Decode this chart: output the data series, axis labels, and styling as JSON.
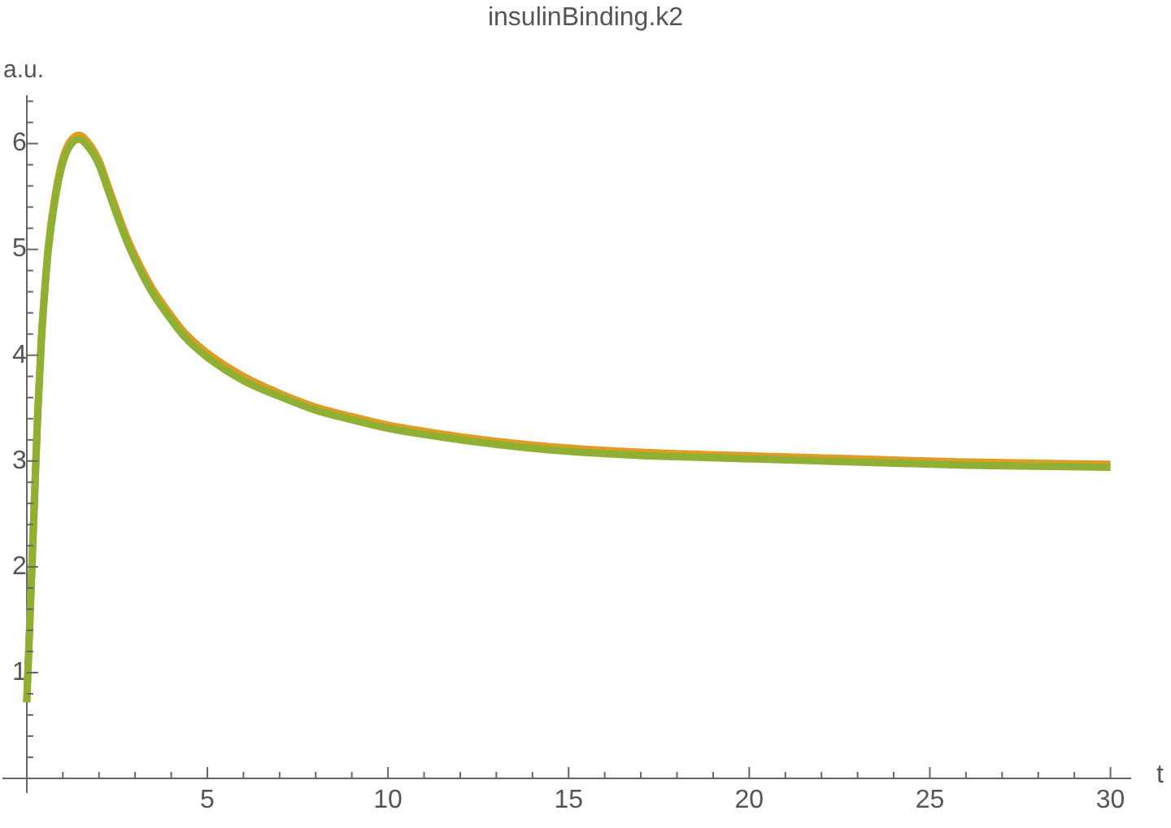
{
  "chart_data": {
    "type": "line",
    "title": "insulinBinding.k2",
    "xlabel": "t",
    "ylabel": "a.u.",
    "x": [
      0,
      0.1,
      0.2,
      0.3,
      0.4,
      0.5,
      0.6,
      0.8,
      1.0,
      1.2,
      1.45,
      1.7,
      2.0,
      2.26,
      2.5,
      2.79,
      3.1,
      3.46,
      3.9,
      4.35,
      5,
      6,
      7,
      8,
      9,
      10,
      12,
      14,
      16,
      18,
      20,
      22,
      24,
      26,
      28,
      30
    ],
    "series": [
      {
        "color": "#e19c24",
        "values": [
          0.72,
          1.62,
          2.53,
          3.43,
          4.14,
          4.64,
          5.04,
          5.54,
          5.86,
          6.02,
          6.08,
          6.01,
          5.84,
          5.59,
          5.36,
          5.1,
          4.87,
          4.64,
          4.42,
          4.22,
          4.02,
          3.8,
          3.64,
          3.51,
          3.42,
          3.34,
          3.23,
          3.15,
          3.1,
          3.07,
          3.05,
          3.03,
          3.01,
          2.99,
          2.98,
          2.97
        ]
      },
      {
        "color": "#8fb032",
        "values": [
          0.72,
          1.6,
          2.5,
          3.4,
          4.1,
          4.6,
          5.0,
          5.5,
          5.82,
          5.98,
          6.04,
          5.97,
          5.8,
          5.55,
          5.32,
          5.06,
          4.83,
          4.6,
          4.38,
          4.18,
          3.98,
          3.76,
          3.61,
          3.48,
          3.39,
          3.31,
          3.2,
          3.12,
          3.07,
          3.04,
          3.02,
          3.0,
          2.98,
          2.96,
          2.95,
          2.94
        ]
      }
    ],
    "xlim": [
      -0.65,
      30.55
    ],
    "ylim": [
      -0.13,
      6.45
    ],
    "xticks": [
      {
        "value": 1,
        "label": null
      },
      {
        "value": 2,
        "label": null
      },
      {
        "value": 3,
        "label": null
      },
      {
        "value": 4,
        "label": null
      },
      5,
      {
        "value": 6,
        "label": null
      },
      {
        "value": 7,
        "label": null
      },
      {
        "value": 8,
        "label": null
      },
      {
        "value": 9,
        "label": null
      },
      10,
      {
        "value": 11,
        "label": null
      },
      {
        "value": 12,
        "label": null
      },
      {
        "value": 13,
        "label": null
      },
      {
        "value": 14,
        "label": null
      },
      15,
      {
        "value": 16,
        "label": null
      },
      {
        "value": 17,
        "label": null
      },
      {
        "value": 18,
        "label": null
      },
      {
        "value": 19,
        "label": null
      },
      20,
      {
        "value": 21,
        "label": null
      },
      {
        "value": 22,
        "label": null
      },
      {
        "value": 23,
        "label": null
      },
      {
        "value": 24,
        "label": null
      },
      25,
      {
        "value": 26,
        "label": null
      },
      {
        "value": 27,
        "label": null
      },
      {
        "value": 28,
        "label": null
      },
      {
        "value": 29,
        "label": null
      },
      30
    ],
    "yticks": [
      {
        "value": 0.2,
        "label": null
      },
      {
        "value": 0.4,
        "label": null
      },
      {
        "value": 0.6,
        "label": null
      },
      {
        "value": 0.8,
        "label": null
      },
      1,
      {
        "value": 1.2,
        "label": null
      },
      {
        "value": 1.4,
        "label": null
      },
      {
        "value": 1.6,
        "label": null
      },
      {
        "value": 1.8,
        "label": null
      },
      2,
      {
        "value": 2.2,
        "label": null
      },
      {
        "value": 2.4,
        "label": null
      },
      {
        "value": 2.6,
        "label": null
      },
      {
        "value": 2.8,
        "label": null
      },
      3,
      {
        "value": 3.2,
        "label": null
      },
      {
        "value": 3.4,
        "label": null
      },
      {
        "value": 3.6,
        "label": null
      },
      {
        "value": 3.8,
        "label": null
      },
      4,
      {
        "value": 4.2,
        "label": null
      },
      {
        "value": 4.4,
        "label": null
      },
      {
        "value": 4.6,
        "label": null
      },
      {
        "value": 4.8,
        "label": null
      },
      5,
      {
        "value": 5.2,
        "label": null
      },
      {
        "value": 5.4,
        "label": null
      },
      {
        "value": 5.6,
        "label": null
      },
      {
        "value": 5.8,
        "label": null
      },
      6,
      {
        "value": 6.2,
        "label": null
      },
      {
        "value": 6.4,
        "label": null
      }
    ]
  }
}
